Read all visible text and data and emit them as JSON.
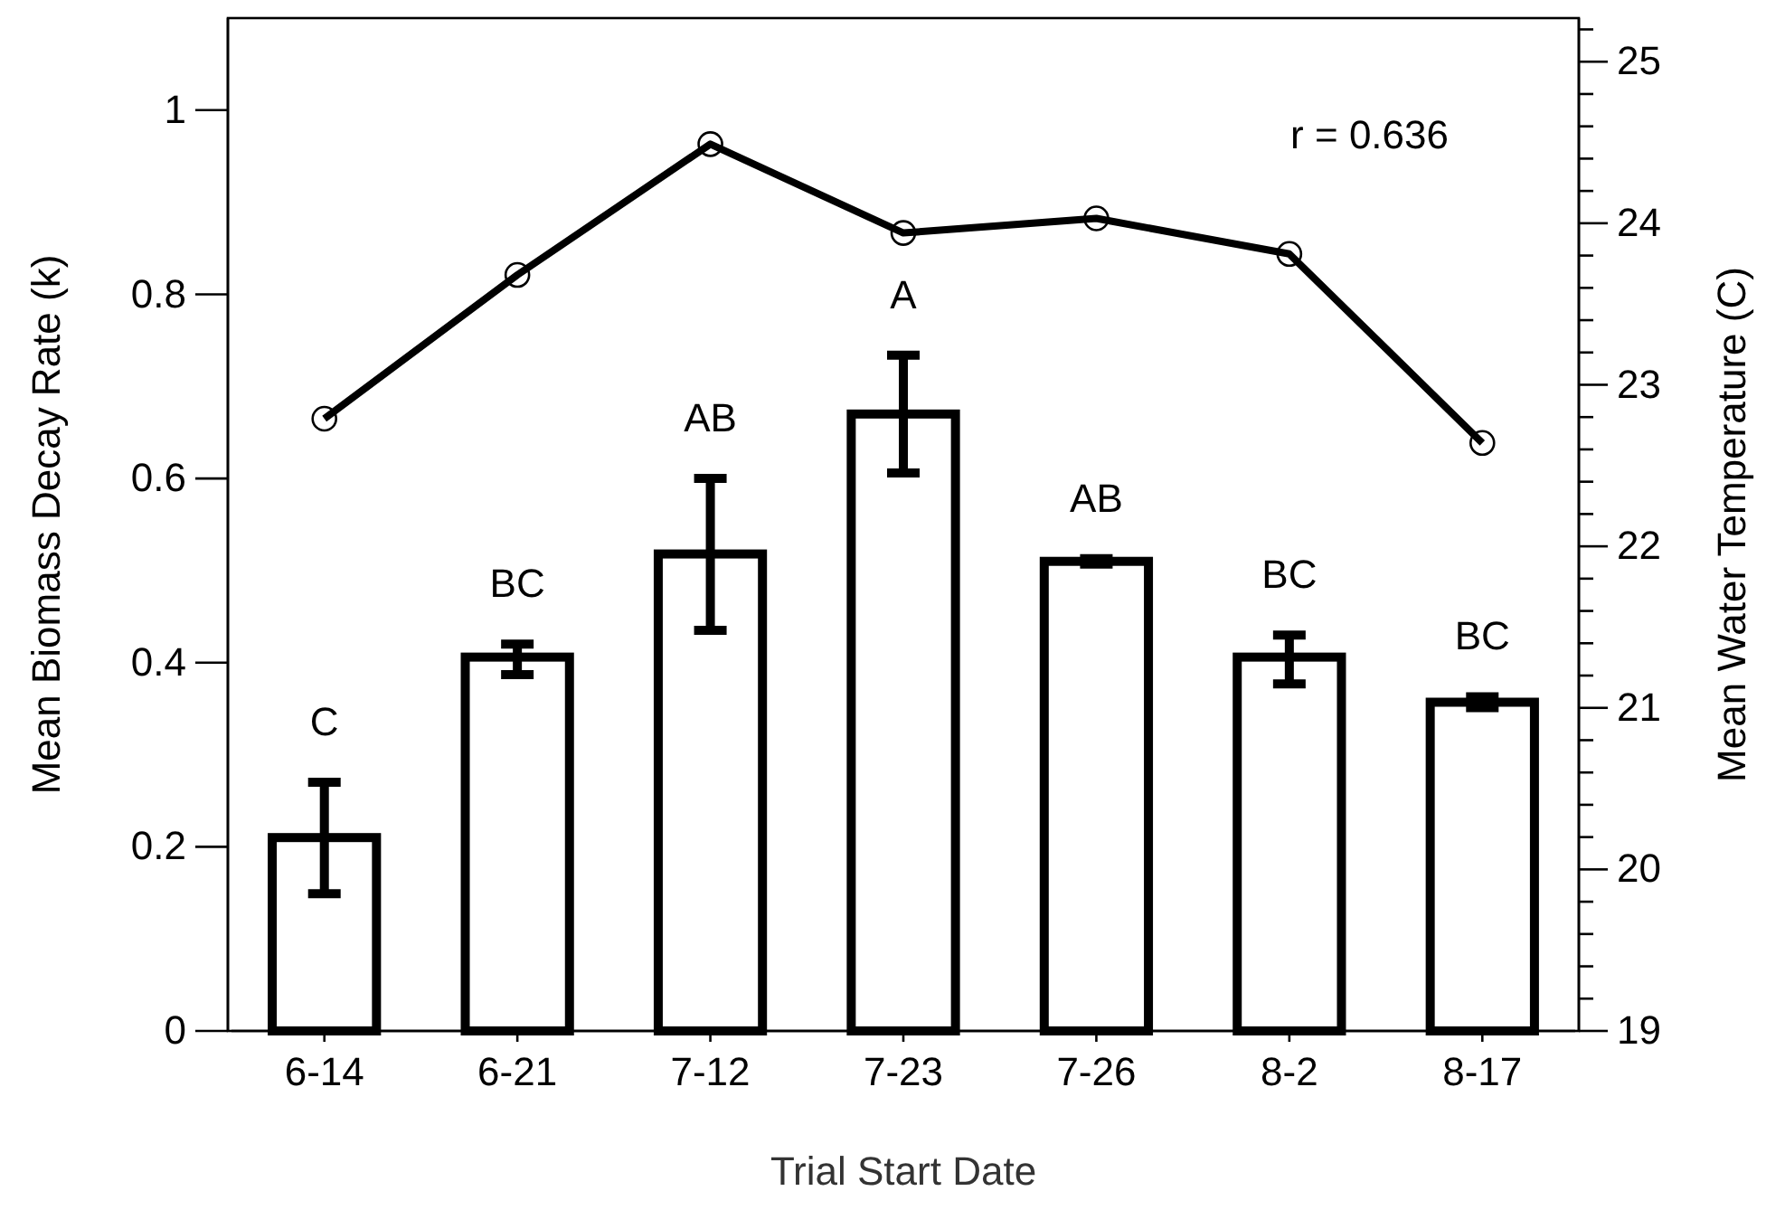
{
  "chart_data": {
    "type": "bar",
    "xlabel": "Trial Start Date",
    "ylabel": "Mean Biomass Decay Rate (k)",
    "y2label": "Mean Water Temperature (C)",
    "categories": [
      "6-14",
      "6-21",
      "7-12",
      "7-23",
      "7-26",
      "8-2",
      "8-17"
    ],
    "series": [
      {
        "color": "#000000",
        "values": [
          0.21,
          0.406,
          0.518,
          0.67,
          0.51,
          0.406,
          0.357
        ],
        "errors": [
          [
            0.149,
            0.27
          ],
          [
            0.387,
            0.42
          ],
          [
            0.435,
            0.6
          ],
          [
            0.606,
            0.734
          ],
          [
            0.507,
            0.513
          ],
          [
            0.377,
            0.43
          ],
          [
            0.351,
            0.363
          ]
        ]
      },
      {
        "type": "line",
        "axis": "y2",
        "color": "#000000",
        "marker": "circle",
        "values": [
          22.79,
          23.68,
          24.49,
          23.94,
          24.03,
          23.81,
          22.64
        ]
      }
    ],
    "ylim": [
      0,
      1.1
    ],
    "yticks": [
      0,
      0.2,
      0.4,
      0.6,
      0.8,
      1
    ],
    "y2lim": [
      19,
      25.27
    ],
    "y2ticks": [
      19,
      {
        "value": 19.2,
        "label": null
      },
      {
        "value": 19.4,
        "label": null
      },
      {
        "value": 19.6,
        "label": null
      },
      {
        "value": 19.8,
        "label": null
      },
      20,
      {
        "value": 20.2,
        "label": null
      },
      {
        "value": 20.4,
        "label": null
      },
      {
        "value": 20.6,
        "label": null
      },
      {
        "value": 20.8,
        "label": null
      },
      21,
      {
        "value": 21.2,
        "label": null
      },
      {
        "value": 21.4,
        "label": null
      },
      {
        "value": 21.6,
        "label": null
      },
      {
        "value": 21.8,
        "label": null
      },
      22,
      {
        "value": 22.2,
        "label": null
      },
      {
        "value": 22.4,
        "label": null
      },
      {
        "value": 22.6,
        "label": null
      },
      {
        "value": 22.8,
        "label": null
      },
      23,
      {
        "value": 23.2,
        "label": null
      },
      {
        "value": 23.4,
        "label": null
      },
      {
        "value": 23.6,
        "label": null
      },
      {
        "value": 23.8,
        "label": null
      },
      24,
      {
        "value": 24.2,
        "label": null
      },
      {
        "value": 24.4,
        "label": null
      },
      {
        "value": 24.6,
        "label": null
      },
      {
        "value": 24.8,
        "label": null
      },
      25,
      {
        "value": 25.2,
        "label": null
      }
    ],
    "annotations": [
      "C",
      "BC",
      "AB",
      "A",
      "AB",
      "BC",
      "BC",
      "r = 0.636"
    ],
    "grid": false
  }
}
